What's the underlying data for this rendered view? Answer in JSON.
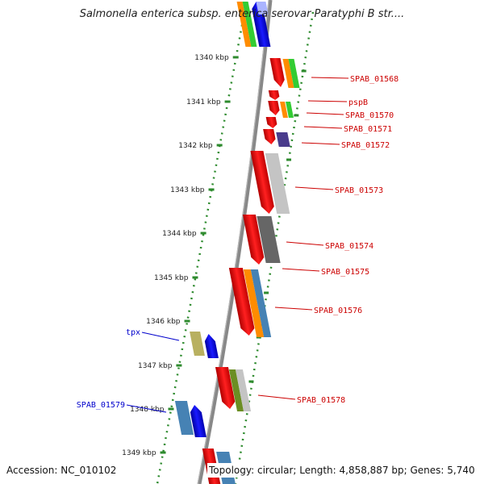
{
  "title": "Salmonella enterica subsp. enterica serovar Paratyphi B str....",
  "accession": "Accession: NC_010102",
  "topology": "Topology: circular; Length: 4,858,887 bp; Genes: 5,740",
  "ruler_ticks": [
    "1340 kbp",
    "1341 kbp",
    "1342 kbp",
    "1343 kbp",
    "1344 kbp",
    "1345 kbp",
    "1346 kbp",
    "1347 kbp",
    "1348 kbp",
    "1349 kbp"
  ],
  "forward_genes": [
    "SPAB_01568",
    "pspB",
    "SPAB_01570",
    "SPAB_01571",
    "SPAB_01572",
    "SPAB_01573",
    "SPAB_01574",
    "SPAB_01575",
    "SPAB_01576",
    "SPAB_01578"
  ],
  "reverse_genes": [
    "tpx",
    "SPAB_01579"
  ],
  "colors": {
    "forward_label": "#cc0000",
    "reverse_label": "#0000cc",
    "gene_red": "#ff0000",
    "gene_blue": "#0000ff",
    "backbone": "#888888",
    "dotted_track": "#2e8b2e"
  }
}
